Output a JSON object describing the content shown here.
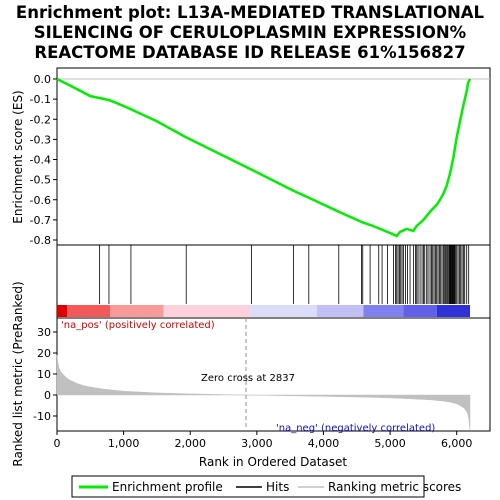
{
  "title_lines": [
    "Enrichment plot: L13A-MEDIATED TRANSLATIONAL",
    "SILENCING OF CERULOPLASMIN EXPRESSION%",
    "REACTOME DATABASE ID RELEASE 61%156827"
  ],
  "colors": {
    "es_line": "#00ee00",
    "hits": "#000000",
    "metric_fill": "#c0c0c0",
    "pos_text": "#d00000",
    "neg_text": "#1010c0",
    "zero_line": "#909090",
    "grid": "#c0c0c0"
  },
  "chart_data": [
    {
      "type": "line",
      "panel": "enrichment",
      "ylabel": "Enrichment score (ES)",
      "xlim": [
        0,
        6500
      ],
      "ylim": [
        -0.8,
        0.05
      ],
      "yticks": [
        0.0,
        -0.1,
        -0.2,
        -0.3,
        -0.4,
        -0.5,
        -0.6,
        -0.7,
        -0.8
      ],
      "ytick_labels": [
        "0.0",
        "-0.1",
        "-0.2",
        "-0.3",
        "-0.4",
        "-0.5",
        "-0.6",
        "-0.7",
        "-0.8"
      ],
      "series": [
        {
          "name": "Enrichment profile",
          "x": [
            0,
            150,
            300,
            500,
            650,
            780,
            900,
            1110,
            1500,
            1940,
            2400,
            2920,
            3550,
            3780,
            4230,
            4570,
            4700,
            4850,
            5000,
            5100,
            5150,
            5250,
            5350,
            5400,
            5500,
            5600,
            5700,
            5750,
            5800,
            5850,
            5900,
            5950,
            6000,
            6050,
            6100,
            6150,
            6170,
            6200
          ],
          "y": [
            0.0,
            -0.025,
            -0.05,
            -0.085,
            -0.095,
            -0.105,
            -0.12,
            -0.15,
            -0.21,
            -0.29,
            -0.365,
            -0.45,
            -0.555,
            -0.59,
            -0.66,
            -0.71,
            -0.725,
            -0.745,
            -0.765,
            -0.78,
            -0.76,
            -0.745,
            -0.755,
            -0.73,
            -0.7,
            -0.66,
            -0.625,
            -0.6,
            -0.57,
            -0.53,
            -0.47,
            -0.39,
            -0.29,
            -0.21,
            -0.13,
            -0.06,
            -0.02,
            0.0
          ]
        }
      ]
    },
    {
      "type": "scatter",
      "panel": "hits",
      "xlim": [
        0,
        6500
      ],
      "hit_positions": [
        640,
        780,
        1110,
        1940,
        2920,
        3550,
        3780,
        4230,
        4570,
        4590,
        4700,
        4830,
        4880,
        4960,
        5050,
        5080,
        5100,
        5120,
        5140,
        5160,
        5180,
        5200,
        5230,
        5260,
        5300,
        5350,
        5380,
        5400,
        5420,
        5450,
        5480,
        5500,
        5520,
        5550,
        5570,
        5600,
        5620,
        5640,
        5660,
        5680,
        5700,
        5720,
        5740,
        5760,
        5780,
        5800,
        5820,
        5830,
        5850,
        5860,
        5880,
        5890,
        5900,
        5910,
        5920,
        5930,
        5940,
        5950,
        5960,
        5970,
        5980,
        6000,
        6020,
        6040,
        6060,
        6080,
        6100,
        6120,
        6150,
        6180
      ]
    },
    {
      "type": "area",
      "panel": "ranked_metric",
      "ylabel": "Ranked list metric (PreRanked)",
      "xlabel": "Rank in Ordered Dataset",
      "xlim": [
        0,
        6500
      ],
      "ylim": [
        -17,
        30
      ],
      "xticks": [
        0,
        1000,
        2000,
        3000,
        4000,
        5000,
        6000
      ],
      "xtick_labels": [
        "0",
        "1,000",
        "2,000",
        "3,000",
        "4,000",
        "5,000",
        "6,000"
      ],
      "yticks": [
        30,
        20,
        10,
        0,
        -10
      ],
      "ytick_labels": [
        "30",
        "20",
        "10",
        "0",
        "-10"
      ],
      "x": [
        0,
        10,
        30,
        60,
        100,
        150,
        200,
        300,
        400,
        500,
        700,
        1000,
        1500,
        2000,
        2500,
        2837,
        3200,
        3800,
        4300,
        4700,
        5000,
        5300,
        5600,
        5800,
        5900,
        6000,
        6050,
        6100,
        6130,
        6160,
        6180,
        6190,
        6200
      ],
      "values": [
        19,
        16,
        13,
        11,
        9.5,
        8,
        7,
        5.5,
        4.5,
        3.8,
        2.8,
        1.8,
        1.0,
        0.5,
        0.2,
        0.0,
        -0.2,
        -0.5,
        -0.8,
        -1.1,
        -1.4,
        -1.8,
        -2.3,
        -2.9,
        -3.4,
        -4.2,
        -5.0,
        -6.0,
        -7.0,
        -8.5,
        -11,
        -14,
        -17
      ],
      "zero_cross_rank": 2837,
      "annotations": {
        "zero_cross": "Zero cross at 2837",
        "pos_label": "'na_pos' (positively correlated)",
        "neg_label": "'na_neg' (negatively correlated)"
      }
    }
  ],
  "legend": {
    "placement": "bottom",
    "items": [
      {
        "label": "Enrichment profile",
        "color": "#00ee00",
        "kind": "line"
      },
      {
        "label": "Hits",
        "color": "#000000",
        "kind": "line"
      },
      {
        "label": "Ranking metric scores",
        "color": "#c0c0c0",
        "kind": "line"
      }
    ]
  }
}
